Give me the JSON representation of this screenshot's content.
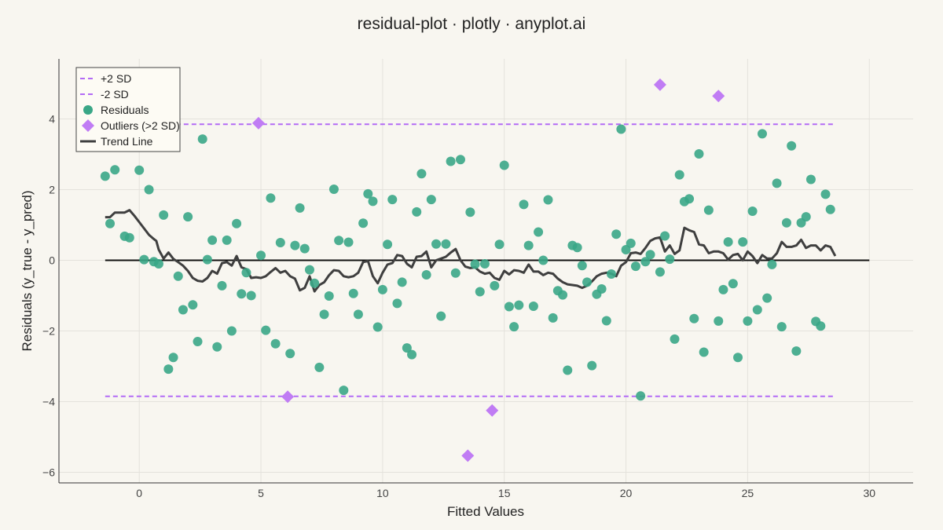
{
  "chart_data": {
    "type": "scatter",
    "title": "residual-plot · plotly · anyplot.ai",
    "xlabel": "Fitted Values",
    "ylabel": "Residuals (y_true - y_pred)",
    "xlim": [
      -3.3,
      31.8
    ],
    "ylim": [
      -6.3,
      5.7
    ],
    "x_ticks": [
      0,
      5,
      10,
      15,
      20,
      25,
      30
    ],
    "y_ticks": [
      -6,
      -4,
      -2,
      0,
      2,
      4
    ],
    "x_tick_labels": [
      "0",
      "5",
      "10",
      "15",
      "20",
      "25",
      "30"
    ],
    "y_tick_labels": [
      "−6",
      "−4",
      "−2",
      "0",
      "2",
      "4"
    ],
    "grid": true,
    "legend_position": "top-left",
    "zero_line": {
      "y": 0,
      "x_range": [
        -1.4,
        30.0
      ],
      "color": "#111111"
    },
    "upper_sd": {
      "name": "+2 SD",
      "y": 3.85,
      "x_range": [
        -1.4,
        28.6
      ],
      "color": "#b36bf5"
    },
    "lower_sd": {
      "name": "-2 SD",
      "y": -3.85,
      "x_range": [
        -1.4,
        28.6
      ],
      "color": "#b36bf5"
    },
    "residuals": {
      "name": "Residuals",
      "color": "#3aa787",
      "points": [
        [
          -1.4,
          2.38
        ],
        [
          -1.2,
          1.04
        ],
        [
          -1.0,
          2.56
        ],
        [
          -0.6,
          0.68
        ],
        [
          -0.4,
          0.64
        ],
        [
          0.0,
          2.55
        ],
        [
          0.2,
          0.02
        ],
        [
          0.4,
          2.0
        ],
        [
          0.6,
          -0.04
        ],
        [
          0.8,
          -0.1
        ],
        [
          1.0,
          1.28
        ],
        [
          1.2,
          -3.08
        ],
        [
          1.4,
          -2.75
        ],
        [
          1.6,
          -0.45
        ],
        [
          1.8,
          -1.4
        ],
        [
          2.0,
          1.23
        ],
        [
          2.2,
          -1.26
        ],
        [
          2.4,
          -2.3
        ],
        [
          2.6,
          3.43
        ],
        [
          2.8,
          0.02
        ],
        [
          3.0,
          0.57
        ],
        [
          3.2,
          -2.45
        ],
        [
          3.4,
          -0.72
        ],
        [
          3.6,
          0.57
        ],
        [
          3.8,
          -2.0
        ],
        [
          4.0,
          1.04
        ],
        [
          4.2,
          -0.95
        ],
        [
          4.4,
          -0.35
        ],
        [
          4.6,
          -1.0
        ],
        [
          5.0,
          0.14
        ],
        [
          5.2,
          -1.98
        ],
        [
          5.4,
          1.76
        ],
        [
          5.6,
          -2.36
        ],
        [
          5.8,
          0.5
        ],
        [
          6.2,
          -2.64
        ],
        [
          6.4,
          0.42
        ],
        [
          6.6,
          1.48
        ],
        [
          6.8,
          0.33
        ],
        [
          7.0,
          -0.27
        ],
        [
          7.2,
          -0.65
        ],
        [
          7.4,
          -3.03
        ],
        [
          7.6,
          -1.53
        ],
        [
          7.8,
          -1.01
        ],
        [
          8.0,
          2.01
        ],
        [
          8.2,
          0.56
        ],
        [
          8.4,
          -3.68
        ],
        [
          8.6,
          0.51
        ],
        [
          8.8,
          -0.94
        ],
        [
          9.0,
          -1.53
        ],
        [
          9.2,
          1.05
        ],
        [
          9.4,
          1.88
        ],
        [
          9.6,
          1.67
        ],
        [
          9.8,
          -1.89
        ],
        [
          10.0,
          -0.83
        ],
        [
          10.2,
          0.45
        ],
        [
          10.4,
          1.72
        ],
        [
          10.6,
          -1.22
        ],
        [
          10.8,
          -0.62
        ],
        [
          11.0,
          -2.48
        ],
        [
          11.2,
          -2.67
        ],
        [
          11.4,
          1.37
        ],
        [
          11.6,
          2.45
        ],
        [
          11.8,
          -0.41
        ],
        [
          12.0,
          1.72
        ],
        [
          12.2,
          0.46
        ],
        [
          12.4,
          -1.58
        ],
        [
          12.6,
          0.46
        ],
        [
          12.8,
          2.8
        ],
        [
          13.0,
          -0.36
        ],
        [
          13.2,
          2.85
        ],
        [
          13.6,
          1.36
        ],
        [
          13.8,
          -0.11
        ],
        [
          14.0,
          -0.89
        ],
        [
          14.2,
          -0.1
        ],
        [
          14.6,
          -0.72
        ],
        [
          14.8,
          0.45
        ],
        [
          15.0,
          2.69
        ],
        [
          15.2,
          -1.31
        ],
        [
          15.4,
          -1.88
        ],
        [
          15.6,
          -1.27
        ],
        [
          15.8,
          1.58
        ],
        [
          16.0,
          0.42
        ],
        [
          16.2,
          -1.3
        ],
        [
          16.4,
          0.8
        ],
        [
          16.6,
          0.0
        ],
        [
          16.8,
          1.71
        ],
        [
          17.0,
          -1.63
        ],
        [
          17.2,
          -0.86
        ],
        [
          17.4,
          -0.98
        ],
        [
          17.6,
          -3.11
        ],
        [
          17.8,
          0.42
        ],
        [
          18.0,
          0.36
        ],
        [
          18.2,
          -0.15
        ],
        [
          18.4,
          -0.62
        ],
        [
          18.6,
          -2.98
        ],
        [
          18.8,
          -0.96
        ],
        [
          19.0,
          -0.81
        ],
        [
          19.2,
          -1.71
        ],
        [
          19.4,
          -0.39
        ],
        [
          19.6,
          0.74
        ],
        [
          19.8,
          3.71
        ],
        [
          20.0,
          0.3
        ],
        [
          20.2,
          0.48
        ],
        [
          20.4,
          -0.17
        ],
        [
          20.6,
          -3.84
        ],
        [
          20.8,
          -0.04
        ],
        [
          21.0,
          0.16
        ],
        [
          21.4,
          -0.33
        ],
        [
          21.6,
          0.69
        ],
        [
          21.8,
          0.03
        ],
        [
          22.0,
          -2.23
        ],
        [
          22.2,
          2.42
        ],
        [
          22.4,
          1.66
        ],
        [
          22.6,
          1.74
        ],
        [
          22.8,
          -1.65
        ],
        [
          23.0,
          3.01
        ],
        [
          23.2,
          -2.6
        ],
        [
          23.4,
          1.42
        ],
        [
          23.8,
          -1.72
        ],
        [
          24.0,
          -0.83
        ],
        [
          24.2,
          0.52
        ],
        [
          24.4,
          -0.66
        ],
        [
          24.6,
          -2.75
        ],
        [
          24.8,
          0.52
        ],
        [
          25.0,
          -1.72
        ],
        [
          25.2,
          1.39
        ],
        [
          25.4,
          -1.4
        ],
        [
          25.6,
          3.58
        ],
        [
          25.8,
          -1.07
        ],
        [
          26.0,
          -0.12
        ],
        [
          26.2,
          2.18
        ],
        [
          26.4,
          -1.88
        ],
        [
          26.6,
          1.06
        ],
        [
          26.8,
          3.24
        ],
        [
          27.0,
          -2.57
        ],
        [
          27.2,
          1.06
        ],
        [
          27.4,
          1.23
        ],
        [
          27.6,
          2.29
        ],
        [
          27.8,
          -1.73
        ],
        [
          28.0,
          -1.86
        ],
        [
          28.2,
          1.87
        ],
        [
          28.4,
          1.44
        ]
      ]
    },
    "outliers": {
      "name": "Outliers (>2 SD)",
      "color": "#c07cf4",
      "points": [
        [
          4.9,
          3.88
        ],
        [
          6.1,
          -3.86
        ],
        [
          13.5,
          -5.53
        ],
        [
          14.5,
          -4.25
        ],
        [
          21.4,
          4.97
        ],
        [
          23.8,
          4.65
        ]
      ]
    },
    "trend": {
      "name": "Trend Line",
      "color": "#3f3f3f",
      "points": [
        [
          -1.4,
          1.22
        ],
        [
          -1.2,
          1.22
        ],
        [
          -1.0,
          1.35
        ],
        [
          -0.8,
          1.35
        ],
        [
          -0.6,
          1.35
        ],
        [
          -0.4,
          1.42
        ],
        [
          -0.2,
          1.26
        ],
        [
          0.0,
          1.08
        ],
        [
          0.2,
          0.9
        ],
        [
          0.4,
          0.72
        ],
        [
          0.6,
          0.6
        ],
        [
          0.7,
          0.55
        ],
        [
          0.8,
          0.3
        ],
        [
          1.0,
          0.05
        ],
        [
          1.2,
          0.22
        ],
        [
          1.4,
          0.04
        ],
        [
          1.6,
          -0.05
        ],
        [
          1.8,
          -0.15
        ],
        [
          2.0,
          -0.3
        ],
        [
          2.2,
          -0.5
        ],
        [
          2.4,
          -0.58
        ],
        [
          2.6,
          -0.6
        ],
        [
          2.8,
          -0.5
        ],
        [
          3.0,
          -0.3
        ],
        [
          3.2,
          -0.38
        ],
        [
          3.4,
          -0.08
        ],
        [
          3.6,
          -0.05
        ],
        [
          3.8,
          -0.15
        ],
        [
          4.0,
          0.12
        ],
        [
          4.2,
          -0.2
        ],
        [
          4.4,
          -0.25
        ],
        [
          4.6,
          -0.5
        ],
        [
          4.8,
          -0.48
        ],
        [
          5.0,
          -0.5
        ],
        [
          5.2,
          -0.45
        ],
        [
          5.4,
          -0.33
        ],
        [
          5.6,
          -0.22
        ],
        [
          5.8,
          -0.35
        ],
        [
          6.0,
          -0.3
        ],
        [
          6.2,
          -0.45
        ],
        [
          6.4,
          -0.52
        ],
        [
          6.6,
          -0.85
        ],
        [
          6.8,
          -0.78
        ],
        [
          7.0,
          -0.45
        ],
        [
          7.2,
          -0.88
        ],
        [
          7.4,
          -0.7
        ],
        [
          7.6,
          -0.62
        ],
        [
          7.8,
          -0.42
        ],
        [
          8.0,
          -0.28
        ],
        [
          8.2,
          -0.3
        ],
        [
          8.4,
          -0.45
        ],
        [
          8.6,
          -0.48
        ],
        [
          8.8,
          -0.45
        ],
        [
          9.0,
          -0.35
        ],
        [
          9.2,
          -0.05
        ],
        [
          9.4,
          -0.02
        ],
        [
          9.6,
          -0.45
        ],
        [
          9.8,
          -0.65
        ],
        [
          10.0,
          -0.35
        ],
        [
          10.2,
          -0.12
        ],
        [
          10.4,
          -0.08
        ],
        [
          10.6,
          0.15
        ],
        [
          10.8,
          0.12
        ],
        [
          11.0,
          -0.1
        ],
        [
          11.2,
          -0.2
        ],
        [
          11.4,
          0.1
        ],
        [
          11.6,
          0.12
        ],
        [
          11.8,
          0.25
        ],
        [
          12.0,
          -0.2
        ],
        [
          12.2,
          0.0
        ],
        [
          12.4,
          0.05
        ],
        [
          12.6,
          0.1
        ],
        [
          12.8,
          0.22
        ],
        [
          13.0,
          0.32
        ],
        [
          13.2,
          0.0
        ],
        [
          13.4,
          -0.18
        ],
        [
          13.6,
          -0.22
        ],
        [
          13.8,
          -0.2
        ],
        [
          14.0,
          -0.32
        ],
        [
          14.2,
          -0.38
        ],
        [
          14.4,
          -0.35
        ],
        [
          14.6,
          -0.5
        ],
        [
          14.8,
          -0.55
        ],
        [
          15.0,
          -0.3
        ],
        [
          15.2,
          -0.4
        ],
        [
          15.4,
          -0.28
        ],
        [
          15.6,
          -0.3
        ],
        [
          15.8,
          -0.35
        ],
        [
          16.0,
          -0.12
        ],
        [
          16.2,
          -0.32
        ],
        [
          16.4,
          -0.32
        ],
        [
          16.6,
          -0.42
        ],
        [
          16.8,
          -0.35
        ],
        [
          17.0,
          -0.38
        ],
        [
          17.2,
          -0.52
        ],
        [
          17.4,
          -0.62
        ],
        [
          17.6,
          -0.68
        ],
        [
          17.8,
          -0.7
        ],
        [
          18.0,
          -0.72
        ],
        [
          18.2,
          -0.78
        ],
        [
          18.4,
          -0.72
        ],
        [
          18.6,
          -0.6
        ],
        [
          18.8,
          -0.45
        ],
        [
          19.0,
          -0.38
        ],
        [
          19.2,
          -0.35
        ],
        [
          19.4,
          -0.38
        ],
        [
          19.6,
          -0.45
        ],
        [
          19.8,
          -0.15
        ],
        [
          20.0,
          -0.05
        ],
        [
          20.2,
          0.2
        ],
        [
          20.4,
          0.22
        ],
        [
          20.6,
          0.18
        ],
        [
          20.8,
          0.35
        ],
        [
          21.0,
          0.55
        ],
        [
          21.2,
          0.62
        ],
        [
          21.4,
          0.65
        ],
        [
          21.6,
          0.25
        ],
        [
          21.8,
          0.42
        ],
        [
          22.0,
          0.18
        ],
        [
          22.2,
          0.28
        ],
        [
          22.4,
          0.92
        ],
        [
          22.6,
          0.85
        ],
        [
          22.8,
          0.8
        ],
        [
          23.0,
          0.45
        ],
        [
          23.2,
          0.42
        ],
        [
          23.4,
          0.2
        ],
        [
          23.6,
          0.25
        ],
        [
          23.8,
          0.25
        ],
        [
          24.0,
          0.2
        ],
        [
          24.2,
          0.02
        ],
        [
          24.4,
          0.15
        ],
        [
          24.6,
          0.18
        ],
        [
          24.8,
          0.0
        ],
        [
          25.0,
          0.25
        ],
        [
          25.2,
          0.12
        ],
        [
          25.4,
          -0.08
        ],
        [
          25.6,
          0.15
        ],
        [
          25.8,
          0.05
        ],
        [
          26.0,
          0.05
        ],
        [
          26.2,
          0.2
        ],
        [
          26.4,
          0.52
        ],
        [
          26.6,
          0.38
        ],
        [
          26.8,
          0.38
        ],
        [
          27.0,
          0.42
        ],
        [
          27.2,
          0.58
        ],
        [
          27.4,
          0.35
        ],
        [
          27.6,
          0.42
        ],
        [
          27.8,
          0.42
        ],
        [
          28.0,
          0.28
        ],
        [
          28.2,
          0.42
        ],
        [
          28.4,
          0.38
        ],
        [
          28.6,
          0.12
        ]
      ]
    },
    "legend": [
      {
        "name": "+2 SD",
        "symbol": "dash",
        "color": "#b36bf5"
      },
      {
        "name": "-2 SD",
        "symbol": "dash",
        "color": "#b36bf5"
      },
      {
        "name": "Residuals",
        "symbol": "circle",
        "color": "#3aa787"
      },
      {
        "name": "Outliers (>2 SD)",
        "symbol": "diamond",
        "color": "#c07cf4"
      },
      {
        "name": "Trend Line",
        "symbol": "line",
        "color": "#3f3f3f"
      }
    ]
  }
}
